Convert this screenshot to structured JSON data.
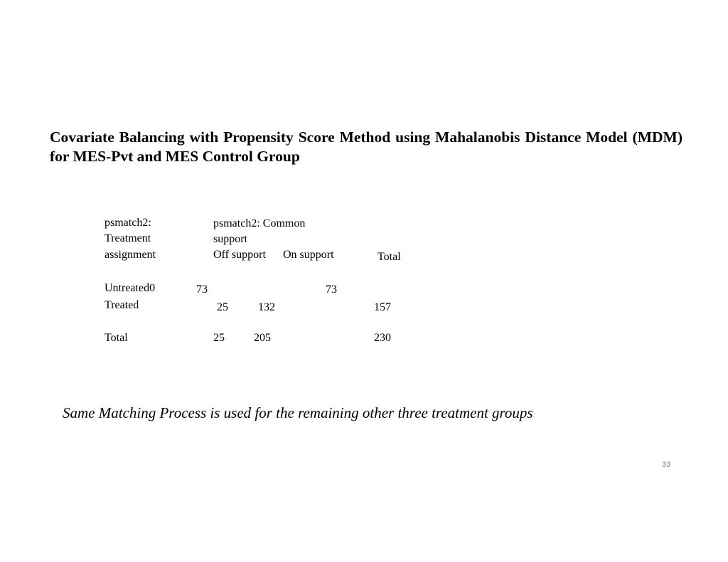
{
  "title": "Covariate Balancing with Propensity Score Method using Mahalanobis Distance Model  (MDM) for MES-Pvt and MES Control Group",
  "table": {
    "row_header": [
      "psmatch2:",
      "Treatment",
      "assignment"
    ],
    "col_group_header": [
      "psmatch2: Common",
      "support"
    ],
    "col_off": "Off support",
    "col_on": "On support",
    "col_total": "Total",
    "rows": [
      {
        "label": "Untreated",
        "off": "0",
        "on": "73",
        "total": "73"
      },
      {
        "label": "Treated",
        "off": "25",
        "on": "132",
        "total": "157"
      },
      {
        "label": "Total",
        "off": "25",
        "on": "205",
        "total": "230"
      }
    ]
  },
  "note": "Same Matching Process is used for the remaining other three treatment groups",
  "page_number": "33"
}
